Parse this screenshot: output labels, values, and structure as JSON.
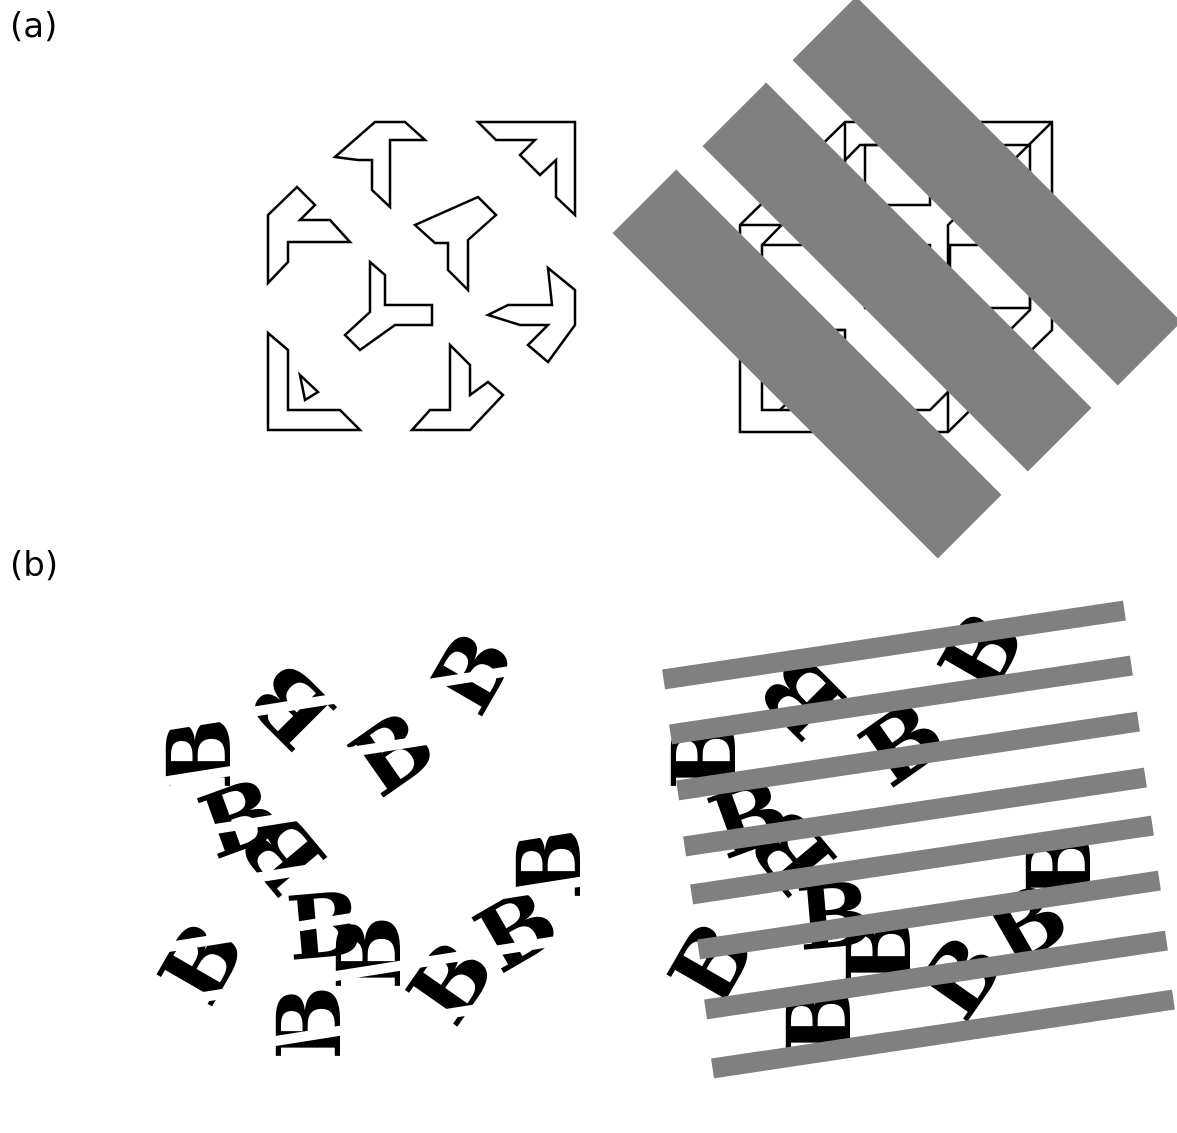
{
  "panels": [
    {
      "id": "a",
      "label": "(a)"
    },
    {
      "id": "b",
      "label": "(b)"
    }
  ],
  "fragment_letter": "B",
  "colors": {
    "background": "#ffffff",
    "ink": "#000000",
    "occluder": "#808080"
  }
}
